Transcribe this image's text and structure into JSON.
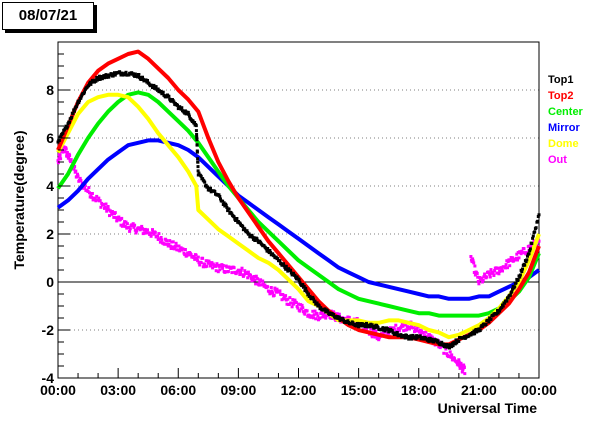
{
  "date_label": "08/07/21",
  "chart_data": {
    "type": "line",
    "xlabel": "Universal Time",
    "ylabel": "Temperature(degree)",
    "xlim": [
      0,
      24
    ],
    "ylim": [
      -4,
      10
    ],
    "x_ticks": [
      0,
      3,
      6,
      9,
      12,
      15,
      18,
      21,
      24
    ],
    "x_tick_labels": [
      "00:00",
      "03:00",
      "06:00",
      "09:00",
      "12:00",
      "15:00",
      "18:00",
      "21:00",
      "00:00"
    ],
    "y_ticks": [
      -4,
      -2,
      0,
      2,
      4,
      6,
      8
    ],
    "y_tick_labels": [
      "-4",
      "-2",
      "0",
      "2",
      "4",
      "6",
      "8"
    ],
    "grid": "dotted-horizontal",
    "legend_position": "right",
    "series": [
      {
        "name": "Top1",
        "color": "#000000",
        "marker": "points",
        "x": [
          0,
          0.5,
          1,
          1.5,
          2,
          2.5,
          3,
          3.5,
          4,
          4.5,
          5,
          5.5,
          6,
          6.5,
          6.9,
          7.0,
          7.5,
          8,
          8.5,
          9,
          9.5,
          10,
          10.5,
          11,
          11.5,
          12,
          12.5,
          13,
          13.5,
          14,
          14.5,
          15,
          15.5,
          16,
          16.5,
          17,
          17.5,
          18,
          18.5,
          19,
          19.5,
          20,
          20.5,
          21,
          21.5,
          22,
          22.5,
          23,
          23.5,
          24
        ],
        "y": [
          5.8,
          6.6,
          7.5,
          8.2,
          8.5,
          8.6,
          8.7,
          8.7,
          8.6,
          8.3,
          8.0,
          7.7,
          7.3,
          7.0,
          6.5,
          4.5,
          3.9,
          3.6,
          3.0,
          2.5,
          2.0,
          1.7,
          1.3,
          0.9,
          0.5,
          0.1,
          -0.5,
          -1.0,
          -1.3,
          -1.5,
          -1.7,
          -1.8,
          -1.8,
          -1.9,
          -2.0,
          -2.2,
          -2.3,
          -2.3,
          -2.4,
          -2.5,
          -2.7,
          -2.4,
          -2.2,
          -2.0,
          -1.6,
          -1.2,
          -0.6,
          0.2,
          1.2,
          2.8
        ]
      },
      {
        "name": "Top2",
        "color": "#ff0000",
        "marker": "line",
        "x": [
          0,
          0.5,
          1,
          1.5,
          2,
          2.5,
          3,
          3.5,
          4,
          4.5,
          5,
          5.5,
          6,
          6.5,
          7.0,
          7.5,
          8,
          8.5,
          9,
          9.5,
          10,
          10.5,
          11,
          11.5,
          12,
          12.5,
          13,
          13.5,
          14,
          14.5,
          15,
          15.5,
          16,
          16.5,
          17,
          17.5,
          18,
          18.5,
          19,
          19.5,
          20,
          20.5,
          21,
          21.5,
          22,
          22.5,
          23,
          23.5,
          24
        ],
        "y": [
          5.5,
          6.5,
          7.5,
          8.3,
          8.8,
          9.1,
          9.3,
          9.5,
          9.6,
          9.3,
          8.9,
          8.5,
          8.0,
          7.6,
          7.1,
          6.0,
          5.0,
          4.2,
          3.5,
          2.9,
          2.3,
          1.7,
          1.2,
          0.7,
          0.2,
          -0.3,
          -0.8,
          -1.2,
          -1.5,
          -1.8,
          -2.0,
          -2.1,
          -2.2,
          -2.3,
          -2.3,
          -2.3,
          -2.4,
          -2.5,
          -2.6,
          -2.6,
          -2.4,
          -2.2,
          -2.0,
          -1.7,
          -1.3,
          -0.9,
          -0.3,
          0.4,
          1.5
        ]
      },
      {
        "name": "Center",
        "color": "#00ee00",
        "marker": "line",
        "x": [
          0,
          0.5,
          1,
          1.5,
          2,
          2.5,
          3,
          3.5,
          4,
          4.5,
          5,
          5.5,
          6,
          6.5,
          7,
          7.5,
          8,
          8.5,
          9,
          9.5,
          10,
          10.5,
          11,
          11.5,
          12,
          12.5,
          13,
          13.5,
          14,
          14.5,
          15,
          15.5,
          16,
          16.5,
          17,
          17.5,
          18,
          18.5,
          19,
          19.5,
          20,
          20.5,
          21,
          21.5,
          22,
          22.5,
          23,
          23.5,
          24
        ],
        "y": [
          3.9,
          4.5,
          5.3,
          6.0,
          6.6,
          7.1,
          7.5,
          7.8,
          7.9,
          7.8,
          7.5,
          7.1,
          6.7,
          6.3,
          5.8,
          5.2,
          4.6,
          4.0,
          3.5,
          3.0,
          2.5,
          2.1,
          1.7,
          1.3,
          0.9,
          0.6,
          0.3,
          0.0,
          -0.3,
          -0.5,
          -0.7,
          -0.8,
          -0.9,
          -1.0,
          -1.1,
          -1.2,
          -1.3,
          -1.3,
          -1.4,
          -1.4,
          -1.4,
          -1.4,
          -1.4,
          -1.3,
          -1.1,
          -0.8,
          -0.4,
          0.2,
          1.2
        ]
      },
      {
        "name": "Mirror",
        "color": "#0000ff",
        "marker": "line",
        "x": [
          0,
          0.5,
          1,
          1.5,
          2,
          2.5,
          3,
          3.5,
          4,
          4.5,
          5,
          5.5,
          6,
          6.5,
          7,
          7.5,
          8,
          8.5,
          9,
          9.5,
          10,
          10.5,
          11,
          11.5,
          12,
          12.5,
          13,
          13.5,
          14,
          14.5,
          15,
          15.5,
          16,
          16.5,
          17,
          17.5,
          18,
          18.5,
          19,
          19.5,
          20,
          20.5,
          21,
          21.5,
          22,
          22.5,
          23,
          23.5,
          24
        ],
        "y": [
          3.1,
          3.4,
          3.8,
          4.3,
          4.7,
          5.1,
          5.4,
          5.7,
          5.8,
          5.9,
          5.9,
          5.8,
          5.7,
          5.5,
          5.2,
          4.8,
          4.4,
          4.0,
          3.6,
          3.3,
          3.0,
          2.7,
          2.4,
          2.1,
          1.8,
          1.5,
          1.2,
          0.9,
          0.6,
          0.4,
          0.2,
          0.0,
          -0.1,
          -0.2,
          -0.3,
          -0.4,
          -0.5,
          -0.6,
          -0.6,
          -0.7,
          -0.7,
          -0.7,
          -0.6,
          -0.6,
          -0.4,
          -0.2,
          0.0,
          0.2,
          0.5
        ]
      },
      {
        "name": "Dome",
        "color": "#ffff00",
        "marker": "line",
        "x": [
          0,
          0.5,
          1,
          1.5,
          2,
          2.5,
          3,
          3.5,
          4,
          4.5,
          5,
          5.5,
          6,
          6.5,
          6.9,
          7.0,
          7.5,
          8,
          8.5,
          9,
          9.5,
          10,
          10.5,
          11,
          11.5,
          12,
          12.5,
          13,
          13.5,
          14,
          14.5,
          15,
          15.5,
          16,
          16.5,
          17,
          17.5,
          18,
          18.5,
          19,
          19.5,
          20,
          20.5,
          21,
          21.5,
          22,
          22.5,
          23,
          23.5,
          24
        ],
        "y": [
          5.4,
          6.2,
          7.0,
          7.5,
          7.7,
          7.8,
          7.8,
          7.7,
          7.3,
          6.8,
          6.2,
          5.7,
          5.2,
          4.6,
          4.0,
          3.0,
          2.6,
          2.2,
          1.9,
          1.6,
          1.3,
          1.0,
          0.8,
          0.5,
          0.1,
          -0.3,
          -0.8,
          -1.0,
          -1.3,
          -1.6,
          -1.6,
          -1.6,
          -1.7,
          -1.7,
          -1.6,
          -1.6,
          -1.7,
          -1.8,
          -2.0,
          -2.1,
          -2.3,
          -2.2,
          -2.0,
          -1.8,
          -1.5,
          -1.1,
          -0.6,
          0.0,
          0.9,
          2.0
        ]
      },
      {
        "name": "Out",
        "color": "#ff00ff",
        "marker": "points",
        "x": [
          0,
          0.3,
          0.6,
          1,
          1.5,
          2,
          2.5,
          3,
          3.5,
          4,
          4.5,
          5,
          5.5,
          6,
          6.5,
          7,
          7.5,
          8,
          8.5,
          9,
          9.5,
          10,
          10.5,
          11,
          11.5,
          12,
          12.5,
          13,
          13.5,
          14,
          14.5,
          15,
          15.5,
          16,
          16.5,
          17,
          17.5,
          18,
          18.5,
          19,
          19.5,
          20,
          20.3,
          20.6,
          21,
          21.5,
          22,
          22.5,
          23,
          23.5,
          24
        ],
        "y": [
          5.0,
          5.6,
          5.1,
          4.3,
          3.8,
          3.4,
          3.0,
          2.6,
          2.3,
          2.2,
          2.1,
          1.9,
          1.6,
          1.4,
          1.2,
          0.9,
          0.7,
          0.6,
          0.5,
          0.5,
          0.3,
          0.0,
          -0.3,
          -0.5,
          -0.8,
          -1.0,
          -1.3,
          -1.4,
          -1.3,
          -1.5,
          -1.6,
          -1.7,
          -2.0,
          -2.3,
          -2.1,
          -1.9,
          -1.8,
          -2.0,
          -2.3,
          -2.6,
          -3.0,
          -3.4,
          -3.7,
          1.0,
          0.0,
          0.3,
          0.5,
          0.8,
          1.1,
          1.4,
          1.7
        ]
      }
    ]
  }
}
